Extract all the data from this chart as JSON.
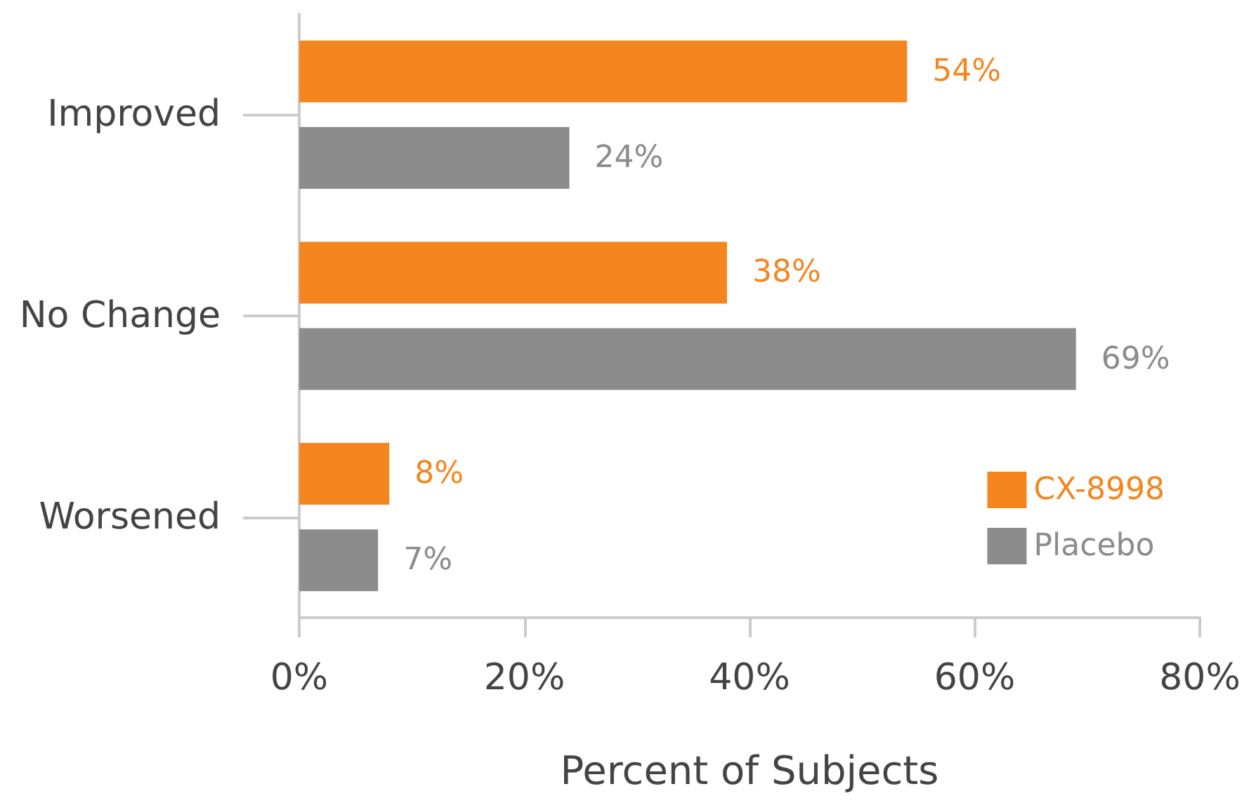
{
  "chart_data": {
    "type": "bar",
    "orientation": "horizontal",
    "xlabel": "Percent of Subjects",
    "categories": [
      "Improved",
      "No Change",
      "Worsened"
    ],
    "series": [
      {
        "name": "CX-8998",
        "color": "#f5861f",
        "values": [
          54,
          38,
          8
        ],
        "value_labels": [
          "54%",
          "38%",
          "8%"
        ]
      },
      {
        "name": "Placebo",
        "color": "#8c8c8c",
        "values": [
          24,
          69,
          7
        ],
        "value_labels": [
          "24%",
          "69%",
          "7%"
        ]
      }
    ],
    "xlim": [
      0,
      80
    ],
    "xticks": [
      {
        "value": 0,
        "label": "0%"
      },
      {
        "value": 20,
        "label": "20%"
      },
      {
        "value": 40,
        "label": "40%"
      },
      {
        "value": 60,
        "label": "60%"
      },
      {
        "value": 80,
        "label": "80%"
      }
    ],
    "grid": false,
    "legend": "bottom right"
  }
}
